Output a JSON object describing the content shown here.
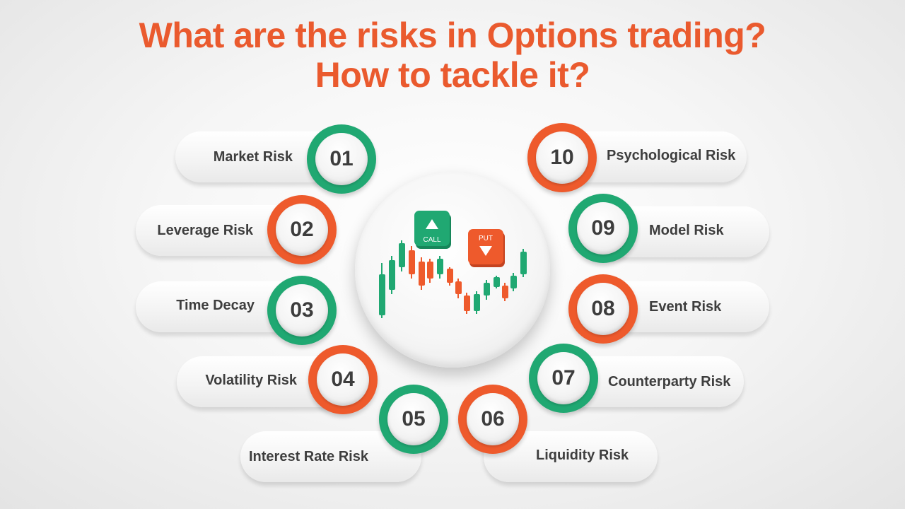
{
  "title": {
    "line1": "What are the risks in Options trading?",
    "line2": "How to tackle it?"
  },
  "colors": {
    "accent": "#ea5a2e",
    "green": "#20a872",
    "orange": "#ee5a2c",
    "text": "#3e3e3e"
  },
  "risks": [
    {
      "num": "01",
      "label": "Market Risk",
      "color": "green"
    },
    {
      "num": "02",
      "label": "Leverage Risk",
      "color": "orange"
    },
    {
      "num": "03",
      "label": "Time Decay",
      "color": "green"
    },
    {
      "num": "04",
      "label": "Volatility Risk",
      "color": "orange"
    },
    {
      "num": "05",
      "label": "Interest Rate Risk",
      "color": "green"
    },
    {
      "num": "06",
      "label": "Liquidity Risk",
      "color": "orange"
    },
    {
      "num": "07",
      "label": "Counterparty Risk",
      "color": "green"
    },
    {
      "num": "08",
      "label": "Event Risk",
      "color": "orange"
    },
    {
      "num": "09",
      "label": "Model Risk",
      "color": "green"
    },
    {
      "num": "10",
      "label": "Psychological Risk",
      "color": "orange"
    }
  ],
  "center": {
    "call_label": "CALL",
    "put_label": "PUT",
    "icon": "candlestick-chart-icon"
  }
}
